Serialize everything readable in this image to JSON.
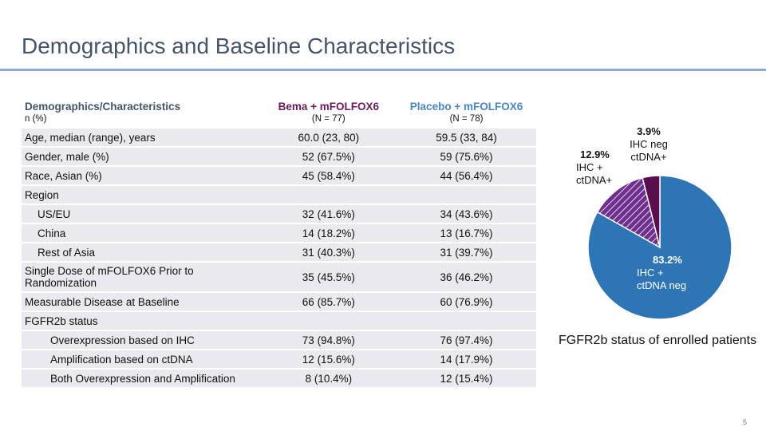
{
  "title": "Demographics and Baseline Characteristics",
  "table": {
    "columns": [
      {
        "name": "Demographics/Characteristics",
        "sub": "n (%)"
      },
      {
        "name": "Bema + mFOLFOX6",
        "sub": "(N = 77)"
      },
      {
        "name": "Placebo + mFOLFOX6",
        "sub": "(N = 78)"
      }
    ],
    "rows": [
      [
        "Age, median (range), years",
        "60.0 (23, 80)",
        "59.5 (33, 84)"
      ],
      [
        "Gender, male (%)",
        "52 (67.5%)",
        "59 (75.6%)"
      ],
      [
        "Race, Asian (%)",
        "45 (58.4%)",
        "44 (56.4%)"
      ],
      [
        "Region"
      ],
      [
        "US/EU",
        "32 (41.6%)",
        "34 (43.6%)"
      ],
      [
        "China",
        "14 (18.2%)",
        "13 (16.7%)"
      ],
      [
        "Rest of Asia",
        "31 (40.3%)",
        "31 (39.7%)"
      ],
      [
        "Single Dose of mFOLFOX6 Prior to Randomization",
        "35 (45.5%)",
        "36 (46.2%)"
      ],
      [
        "Measurable Disease at Baseline",
        "66 (85.7%)",
        "60 (76.9%)"
      ],
      [
        "FGFR2b status"
      ],
      [
        "Overexpression based on IHC",
        "73 (94.8%)",
        "76 (97.4%)"
      ],
      [
        "Amplification based on ctDNA",
        "12 (15.6%)",
        "14 (17.9%)"
      ],
      [
        "Both Overexpression and Amplification",
        "8 (10.4%)",
        "12 (15.4%)"
      ]
    ]
  },
  "chart_data": {
    "type": "pie",
    "title": "FGFR2b status of enrolled patients",
    "categories": [
      "IHC + ctDNA neg",
      "IHC + ctDNA+",
      "IHC neg ctDNA+"
    ],
    "values": [
      83.2,
      12.9,
      3.9
    ],
    "value_labels": [
      "83.2%",
      "12.9%",
      "3.9%"
    ],
    "colors": [
      "#2e75b6",
      "#6f2f8f",
      "#5a0e4e"
    ]
  },
  "page_number": "5"
}
